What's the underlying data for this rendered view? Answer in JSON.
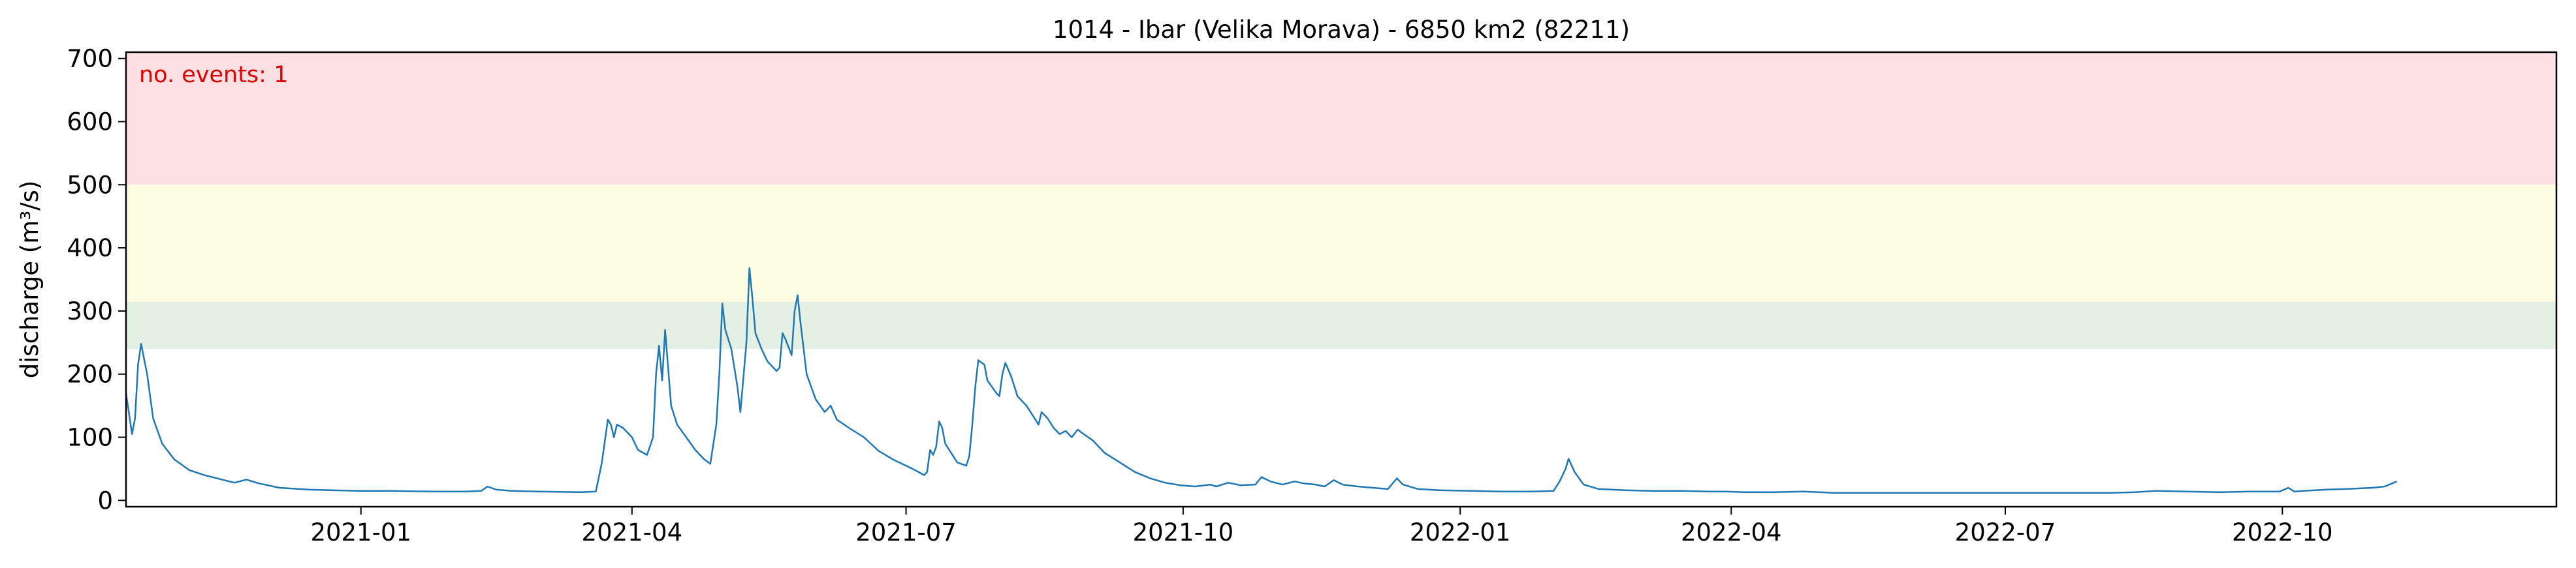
{
  "chart_data": {
    "type": "line",
    "title": "1014 - Ibar (Velika Morava) - 6850 km2 (82211)",
    "xlabel": "",
    "ylabel": "discharge (m³/s)",
    "x_range": [
      "2020-10-15",
      "2022-12-31"
    ],
    "ylim": [
      -10,
      710
    ],
    "x_ticks": [
      "2021-01",
      "2021-04",
      "2021-07",
      "2021-10",
      "2022-01",
      "2022-04",
      "2022-07",
      "2022-10"
    ],
    "y_ticks": [
      0,
      100,
      200,
      300,
      400,
      500,
      600,
      700
    ],
    "grid": false,
    "annotation": "no. events: 1",
    "threshold_bands": [
      {
        "from": 240,
        "to": 315,
        "color": "#e5f0e5"
      },
      {
        "from": 315,
        "to": 500,
        "color": "#fdfde3"
      },
      {
        "from": 500,
        "to": 710,
        "color": "#fde0e3"
      }
    ],
    "series": [
      {
        "color": "#1f77b4",
        "points": [
          [
            "2020-10-15",
            170
          ],
          [
            "2020-10-17",
            105
          ],
          [
            "2020-10-18",
            130
          ],
          [
            "2020-10-19",
            215
          ],
          [
            "2020-10-20",
            248
          ],
          [
            "2020-10-22",
            200
          ],
          [
            "2020-10-24",
            130
          ],
          [
            "2020-10-27",
            90
          ],
          [
            "2020-10-31",
            65
          ],
          [
            "2020-11-05",
            48
          ],
          [
            "2020-11-10",
            40
          ],
          [
            "2020-11-15",
            34
          ],
          [
            "2020-11-20",
            28
          ],
          [
            "2020-11-24",
            33
          ],
          [
            "2020-11-28",
            27
          ],
          [
            "2020-12-05",
            20
          ],
          [
            "2020-12-15",
            17
          ],
          [
            "2020-12-31",
            15
          ],
          [
            "2021-01-10",
            15
          ],
          [
            "2021-01-25",
            14
          ],
          [
            "2021-02-05",
            14
          ],
          [
            "2021-02-10",
            15
          ],
          [
            "2021-02-12",
            22
          ],
          [
            "2021-02-15",
            17
          ],
          [
            "2021-02-20",
            15
          ],
          [
            "2021-03-01",
            14
          ],
          [
            "2021-03-15",
            13
          ],
          [
            "2021-03-20",
            14
          ],
          [
            "2021-03-22",
            60
          ],
          [
            "2021-03-24",
            128
          ],
          [
            "2021-03-25",
            120
          ],
          [
            "2021-03-26",
            100
          ],
          [
            "2021-03-27",
            120
          ],
          [
            "2021-03-29",
            115
          ],
          [
            "2021-04-01",
            100
          ],
          [
            "2021-04-03",
            80
          ],
          [
            "2021-04-06",
            72
          ],
          [
            "2021-04-08",
            100
          ],
          [
            "2021-04-09",
            200
          ],
          [
            "2021-04-10",
            245
          ],
          [
            "2021-04-11",
            190
          ],
          [
            "2021-04-12",
            270
          ],
          [
            "2021-04-13",
            210
          ],
          [
            "2021-04-14",
            150
          ],
          [
            "2021-04-16",
            120
          ],
          [
            "2021-04-19",
            100
          ],
          [
            "2021-04-22",
            80
          ],
          [
            "2021-04-25",
            65
          ],
          [
            "2021-04-27",
            58
          ],
          [
            "2021-04-29",
            120
          ],
          [
            "2021-04-30",
            200
          ],
          [
            "2021-05-01",
            312
          ],
          [
            "2021-05-02",
            270
          ],
          [
            "2021-05-04",
            240
          ],
          [
            "2021-05-06",
            180
          ],
          [
            "2021-05-07",
            140
          ],
          [
            "2021-05-09",
            250
          ],
          [
            "2021-05-10",
            368
          ],
          [
            "2021-05-11",
            320
          ],
          [
            "2021-05-12",
            265
          ],
          [
            "2021-05-14",
            240
          ],
          [
            "2021-05-16",
            220
          ],
          [
            "2021-05-18",
            210
          ],
          [
            "2021-05-19",
            205
          ],
          [
            "2021-05-20",
            210
          ],
          [
            "2021-05-21",
            265
          ],
          [
            "2021-05-22",
            255
          ],
          [
            "2021-05-24",
            230
          ],
          [
            "2021-05-25",
            300
          ],
          [
            "2021-05-26",
            325
          ],
          [
            "2021-05-27",
            280
          ],
          [
            "2021-05-29",
            200
          ],
          [
            "2021-06-01",
            160
          ],
          [
            "2021-06-04",
            140
          ],
          [
            "2021-06-06",
            150
          ],
          [
            "2021-06-08",
            128
          ],
          [
            "2021-06-12",
            115
          ],
          [
            "2021-06-17",
            100
          ],
          [
            "2021-06-22",
            78
          ],
          [
            "2021-06-27",
            64
          ],
          [
            "2021-07-01",
            55
          ],
          [
            "2021-07-04",
            48
          ],
          [
            "2021-07-07",
            40
          ],
          [
            "2021-07-08",
            45
          ],
          [
            "2021-07-09",
            80
          ],
          [
            "2021-07-10",
            72
          ],
          [
            "2021-07-11",
            85
          ],
          [
            "2021-07-12",
            125
          ],
          [
            "2021-07-13",
            115
          ],
          [
            "2021-07-14",
            90
          ],
          [
            "2021-07-16",
            75
          ],
          [
            "2021-07-18",
            60
          ],
          [
            "2021-07-21",
            55
          ],
          [
            "2021-07-22",
            70
          ],
          [
            "2021-07-23",
            120
          ],
          [
            "2021-07-24",
            180
          ],
          [
            "2021-07-25",
            222
          ],
          [
            "2021-07-27",
            215
          ],
          [
            "2021-07-28",
            190
          ],
          [
            "2021-07-31",
            170
          ],
          [
            "2021-08-01",
            165
          ],
          [
            "2021-08-02",
            200
          ],
          [
            "2021-08-03",
            218
          ],
          [
            "2021-08-05",
            195
          ],
          [
            "2021-08-07",
            165
          ],
          [
            "2021-08-10",
            150
          ],
          [
            "2021-08-12",
            135
          ],
          [
            "2021-08-14",
            120
          ],
          [
            "2021-08-15",
            140
          ],
          [
            "2021-08-17",
            130
          ],
          [
            "2021-08-19",
            115
          ],
          [
            "2021-08-21",
            105
          ],
          [
            "2021-08-23",
            110
          ],
          [
            "2021-08-25",
            100
          ],
          [
            "2021-08-27",
            112
          ],
          [
            "2021-08-29",
            105
          ],
          [
            "2021-09-01",
            95
          ],
          [
            "2021-09-05",
            75
          ],
          [
            "2021-09-10",
            60
          ],
          [
            "2021-09-15",
            45
          ],
          [
            "2021-09-20",
            35
          ],
          [
            "2021-09-25",
            28
          ],
          [
            "2021-09-30",
            24
          ],
          [
            "2021-10-05",
            22
          ],
          [
            "2021-10-10",
            25
          ],
          [
            "2021-10-12",
            22
          ],
          [
            "2021-10-16",
            28
          ],
          [
            "2021-10-20",
            24
          ],
          [
            "2021-10-25",
            25
          ],
          [
            "2021-10-27",
            37
          ],
          [
            "2021-10-30",
            30
          ],
          [
            "2021-11-03",
            25
          ],
          [
            "2021-11-07",
            30
          ],
          [
            "2021-11-10",
            27
          ],
          [
            "2021-11-14",
            25
          ],
          [
            "2021-11-17",
            22
          ],
          [
            "2021-11-20",
            32
          ],
          [
            "2021-11-23",
            25
          ],
          [
            "2021-11-28",
            22
          ],
          [
            "2021-12-03",
            20
          ],
          [
            "2021-12-08",
            18
          ],
          [
            "2021-12-11",
            35
          ],
          [
            "2021-12-13",
            25
          ],
          [
            "2021-12-18",
            18
          ],
          [
            "2021-12-25",
            16
          ],
          [
            "2022-01-05",
            15
          ],
          [
            "2022-01-15",
            14
          ],
          [
            "2022-01-25",
            14
          ],
          [
            "2022-02-01",
            15
          ],
          [
            "2022-02-03",
            30
          ],
          [
            "2022-02-05",
            50
          ],
          [
            "2022-02-06",
            66
          ],
          [
            "2022-02-08",
            45
          ],
          [
            "2022-02-11",
            25
          ],
          [
            "2022-02-16",
            18
          ],
          [
            "2022-02-25",
            16
          ],
          [
            "2022-03-05",
            15
          ],
          [
            "2022-03-15",
            15
          ],
          [
            "2022-03-25",
            14
          ],
          [
            "2022-03-30",
            14
          ],
          [
            "2022-04-05",
            13
          ],
          [
            "2022-04-15",
            13
          ],
          [
            "2022-04-25",
            14
          ],
          [
            "2022-05-05",
            12
          ],
          [
            "2022-05-15",
            12
          ],
          [
            "2022-05-25",
            12
          ],
          [
            "2022-06-05",
            12
          ],
          [
            "2022-06-15",
            12
          ],
          [
            "2022-06-25",
            12
          ],
          [
            "2022-07-05",
            12
          ],
          [
            "2022-07-15",
            12
          ],
          [
            "2022-07-25",
            12
          ],
          [
            "2022-08-05",
            12
          ],
          [
            "2022-08-13",
            13
          ],
          [
            "2022-08-20",
            15
          ],
          [
            "2022-08-30",
            14
          ],
          [
            "2022-09-10",
            13
          ],
          [
            "2022-09-20",
            14
          ],
          [
            "2022-09-30",
            14
          ],
          [
            "2022-10-03",
            20
          ],
          [
            "2022-10-05",
            14
          ],
          [
            "2022-10-08",
            15
          ],
          [
            "2022-10-15",
            17
          ],
          [
            "2022-10-22",
            18
          ],
          [
            "2022-10-31",
            20
          ],
          [
            "2022-11-04",
            22
          ],
          [
            "2022-11-07",
            28
          ],
          [
            "2022-11-08",
            30
          ]
        ]
      }
    ]
  }
}
